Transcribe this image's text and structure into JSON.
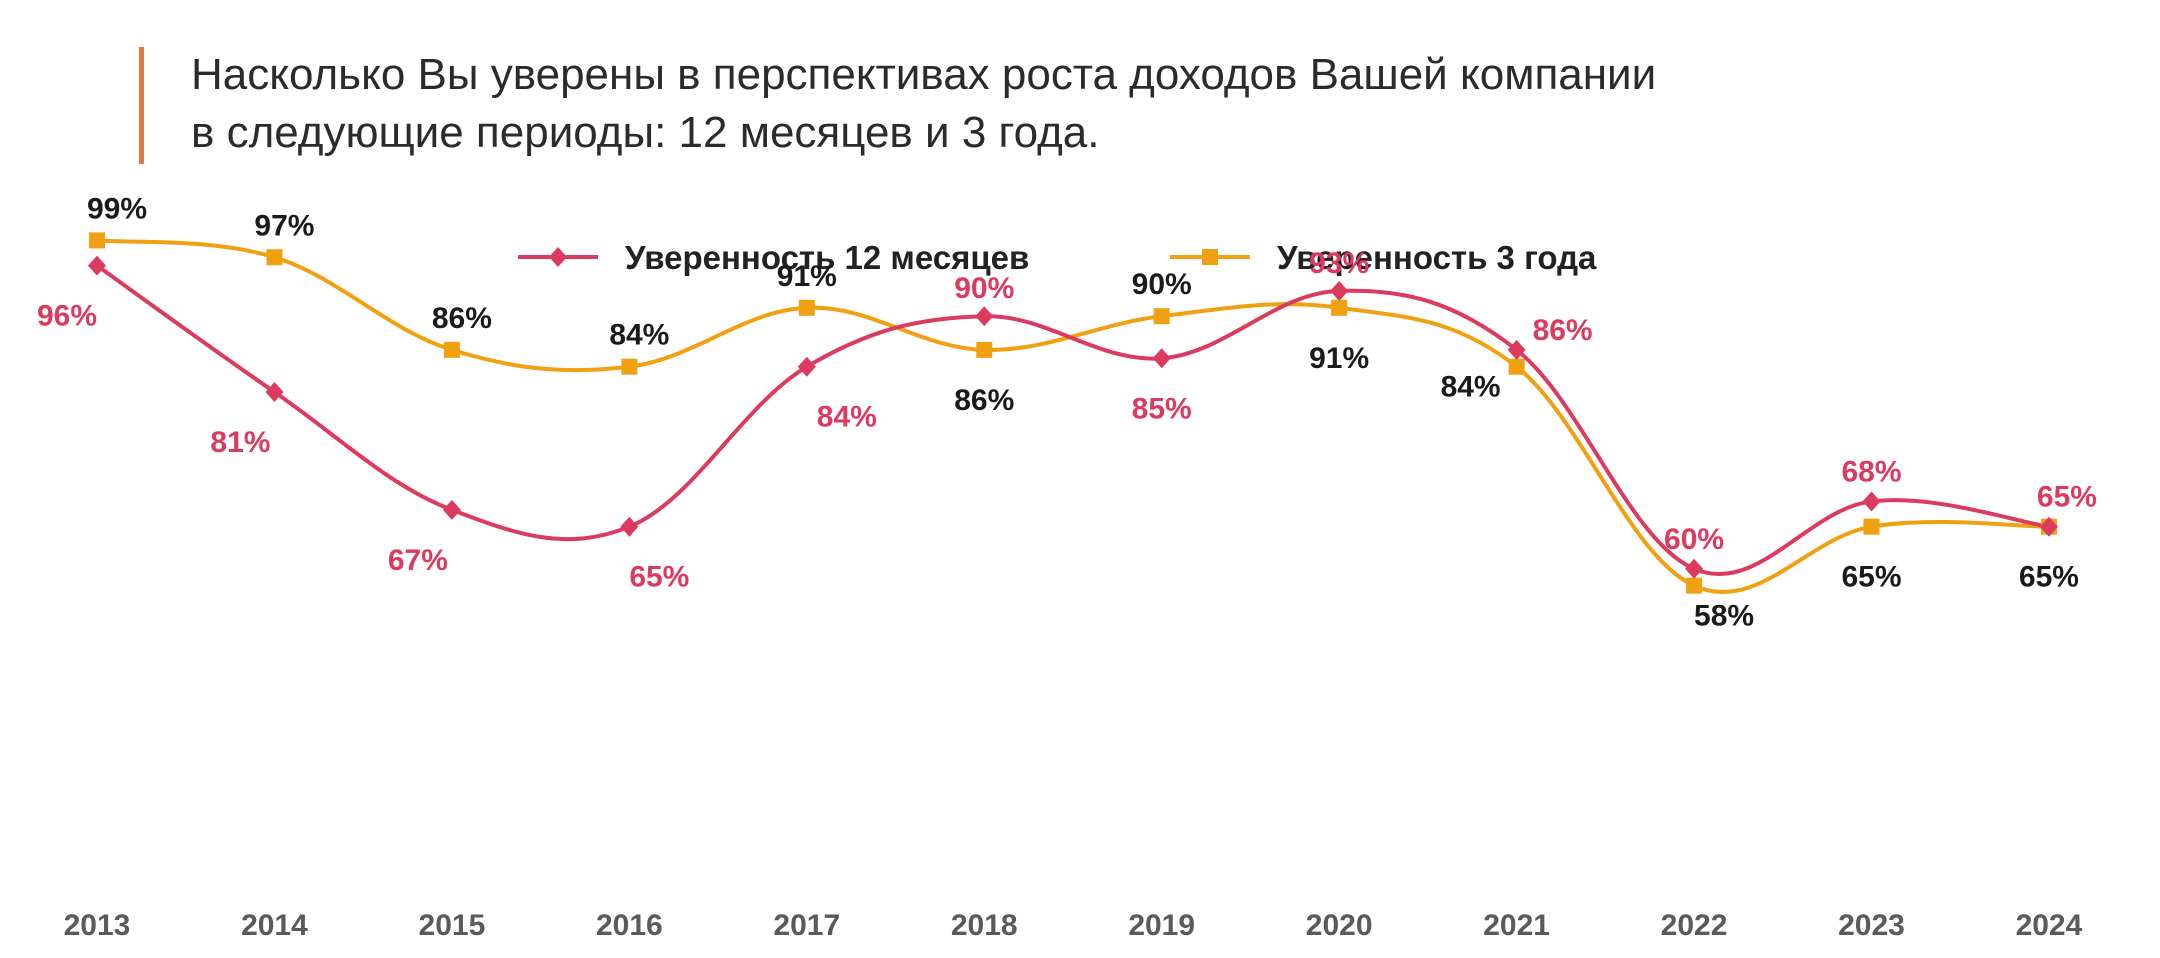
{
  "title": {
    "line1": "Насколько Вы уверены в перспективах роста доходов Вашей компании",
    "line2": "в следующие периоды: 12 месяцев и 3 года."
  },
  "colors": {
    "accent": "#e07a3f",
    "series_12m": "#dc3a5e",
    "series_3y": "#f0a010"
  },
  "chart_data": {
    "type": "line",
    "x": [
      "2013",
      "2014",
      "2015",
      "2016",
      "2017",
      "2018",
      "2019",
      "2020",
      "2021",
      "2022",
      "2023",
      "2024"
    ],
    "series": [
      {
        "name": "Уверенность 12 месяцев",
        "marker": "diamond",
        "values": [
          96,
          81,
          67,
          65,
          84,
          90,
          85,
          93,
          86,
          60,
          68,
          65
        ],
        "labels": [
          "96%",
          "81%",
          "67%",
          "65%",
          "84%",
          "90%",
          "85%",
          "93%",
          "86%",
          "60%",
          "68%",
          "65%"
        ]
      },
      {
        "name": "Уверенность 3 года",
        "marker": "square",
        "values": [
          99,
          97,
          86,
          84,
          91,
          86,
          90,
          91,
          84,
          58,
          65,
          65
        ],
        "labels": [
          "99%",
          "97%",
          "86%",
          "84%",
          "91%",
          "86%",
          "90%",
          "91%",
          "84%",
          "58%",
          "65%",
          "65%"
        ]
      }
    ],
    "ylim": [
      50,
      100
    ],
    "grid": false,
    "legend": "top-center",
    "smooth": true
  }
}
